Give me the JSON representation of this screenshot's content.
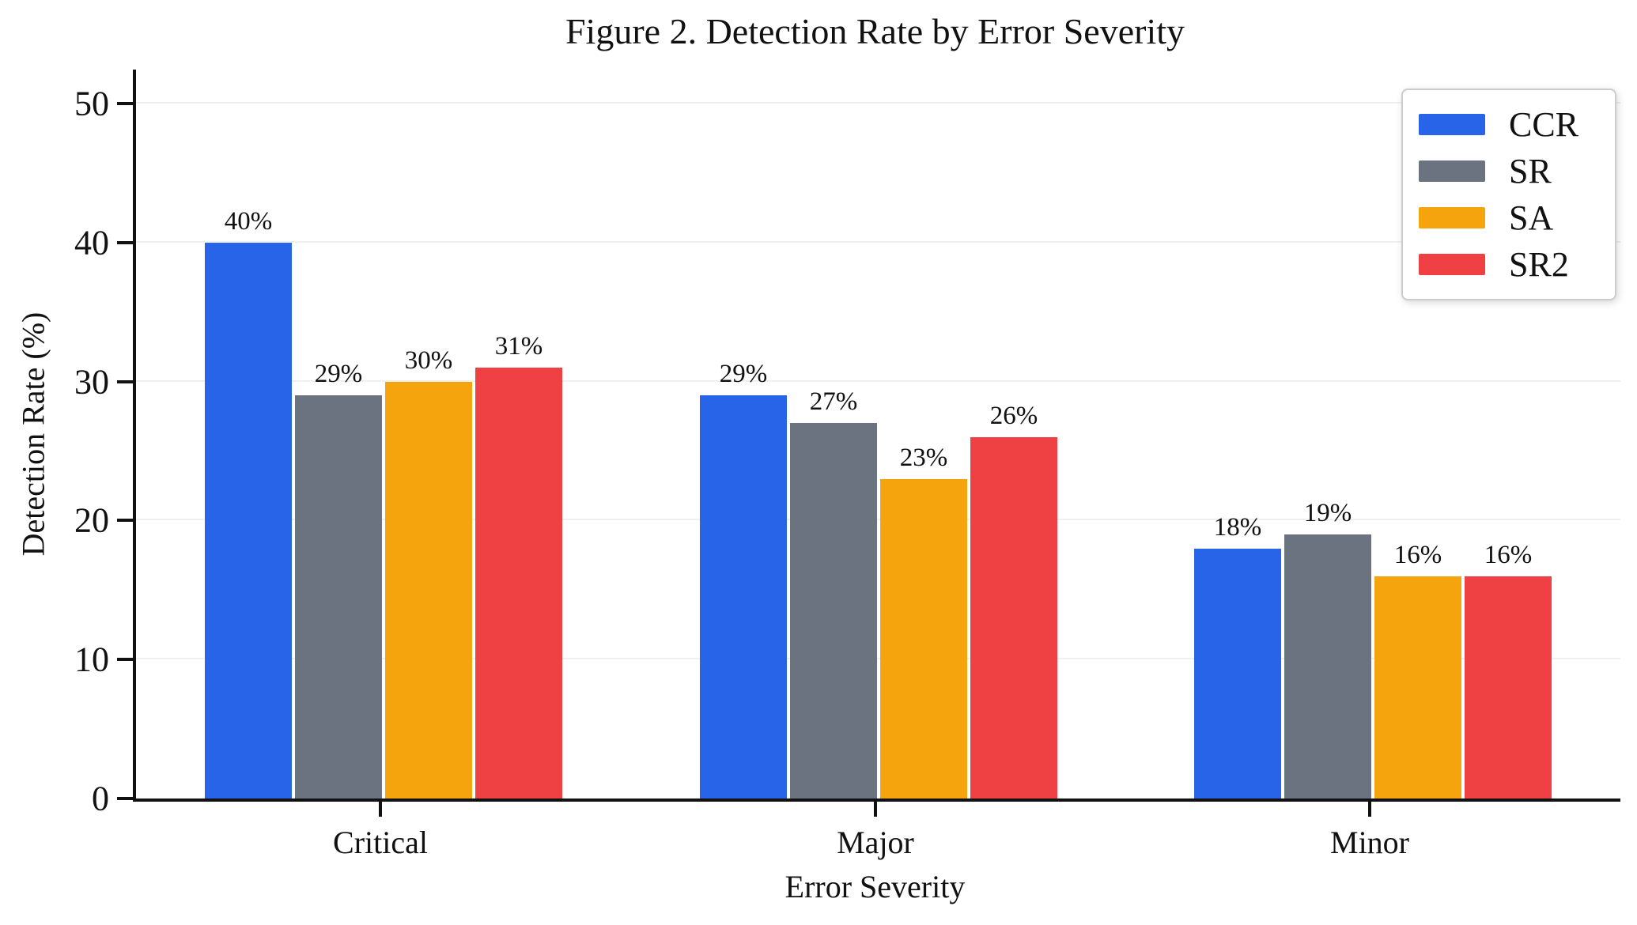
{
  "chart_data": {
    "type": "bar",
    "title": "Figure 2. Detection Rate by Error Severity",
    "xlabel": "Error Severity",
    "ylabel": "Detection Rate (%)",
    "categories": [
      "Critical",
      "Major",
      "Minor"
    ],
    "series": [
      {
        "name": "CCR",
        "color": "#2764e8",
        "values": [
          40,
          29,
          18
        ]
      },
      {
        "name": "SR",
        "color": "#6b7280",
        "values": [
          29,
          27,
          19
        ]
      },
      {
        "name": "SA",
        "color": "#f5a40e",
        "values": [
          30,
          23,
          16
        ]
      },
      {
        "name": "SR2",
        "color": "#ef4143",
        "values": [
          31,
          26,
          16
        ]
      }
    ],
    "value_suffix": "%",
    "data_labels": [
      "40%",
      "29%",
      "30%",
      "31%",
      "29%",
      "27%",
      "23%",
      "26%",
      "18%",
      "19%",
      "16%",
      "16%"
    ],
    "ylim": [
      0,
      50
    ],
    "yticks": [
      0,
      10,
      20,
      30,
      40,
      50
    ],
    "grid": true,
    "legend_position": "upper right",
    "colors": {
      "text": "#111111",
      "spine": "#111111",
      "gridline": "#f0f0f0",
      "background": "#ffffff",
      "legend_border": "#cccccc"
    }
  }
}
